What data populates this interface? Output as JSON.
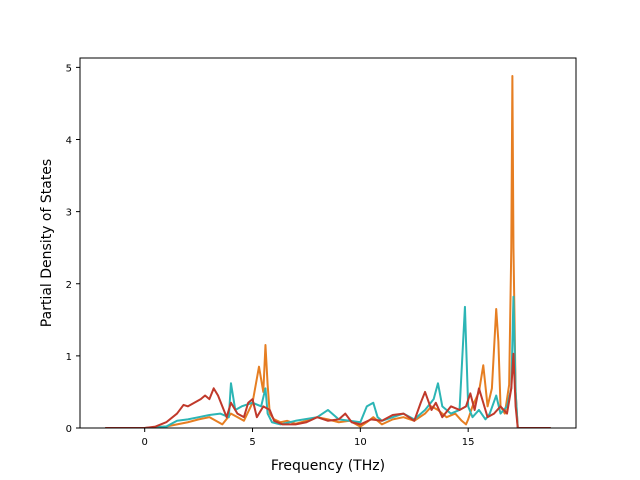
{
  "chart_data": {
    "type": "line",
    "title": "",
    "xlabel": "Frequency (THz)",
    "ylabel": "Partial Density of States",
    "xlim": [
      -3.0,
      20.0
    ],
    "ylim": [
      0,
      5.13
    ],
    "x_ticks": [
      0,
      5,
      10,
      15
    ],
    "x_tick_labels": [
      "0",
      "5",
      "10",
      "15"
    ],
    "y_ticks": [
      0,
      1,
      2,
      3,
      4,
      5
    ],
    "y_tick_labels": [
      "0",
      "1",
      "2",
      "3",
      "4",
      "5"
    ],
    "grid": false,
    "legend": false,
    "series": [
      {
        "color": "#e67e22",
        "x": [
          -1.8,
          0.0,
          1.0,
          1.5,
          2.0,
          2.5,
          3.0,
          3.3,
          3.6,
          4.0,
          4.3,
          4.6,
          5.0,
          5.3,
          5.5,
          5.6,
          5.7,
          5.8,
          6.0,
          6.3,
          6.6,
          7.0,
          7.5,
          8.0,
          8.5,
          9.0,
          9.5,
          10.0,
          10.3,
          10.6,
          11.0,
          11.5,
          12.0,
          12.5,
          13.0,
          13.3,
          13.6,
          14.0,
          14.4,
          14.7,
          14.9,
          15.0,
          15.2,
          15.5,
          15.7,
          15.9,
          16.1,
          16.3,
          16.4,
          16.5,
          16.7,
          16.9,
          17.0,
          17.05,
          17.1,
          17.2,
          17.3,
          17.5,
          18.0,
          18.8
        ],
        "y": [
          0.0,
          0.0,
          0.02,
          0.05,
          0.08,
          0.12,
          0.15,
          0.1,
          0.05,
          0.2,
          0.15,
          0.1,
          0.35,
          0.85,
          0.5,
          1.15,
          0.6,
          0.2,
          0.12,
          0.08,
          0.1,
          0.06,
          0.1,
          0.15,
          0.12,
          0.08,
          0.1,
          0.02,
          0.08,
          0.15,
          0.05,
          0.12,
          0.15,
          0.1,
          0.2,
          0.3,
          0.25,
          0.15,
          0.2,
          0.1,
          0.05,
          0.12,
          0.3,
          0.5,
          0.87,
          0.3,
          0.55,
          1.65,
          1.2,
          0.3,
          0.2,
          0.6,
          2.5,
          4.88,
          2.5,
          0.5,
          0.0,
          0.0,
          0.0,
          0.0
        ]
      },
      {
        "color": "#2cb5b5",
        "x": [
          -1.8,
          0.0,
          1.0,
          1.5,
          2.0,
          2.5,
          3.0,
          3.5,
          3.9,
          4.0,
          4.2,
          4.5,
          5.0,
          5.4,
          5.6,
          5.7,
          5.9,
          6.3,
          7.0,
          8.0,
          8.5,
          9.0,
          9.5,
          10.0,
          10.3,
          10.6,
          10.8,
          11.0,
          11.5,
          12.0,
          12.5,
          13.0,
          13.4,
          13.6,
          13.8,
          14.2,
          14.6,
          14.85,
          14.9,
          15.0,
          15.2,
          15.5,
          15.8,
          16.0,
          16.3,
          16.5,
          16.8,
          17.0,
          17.1,
          17.2,
          17.3,
          17.5,
          18.0,
          18.8
        ],
        "y": [
          0.0,
          0.0,
          0.02,
          0.1,
          0.12,
          0.15,
          0.18,
          0.2,
          0.15,
          0.62,
          0.25,
          0.3,
          0.35,
          0.3,
          0.55,
          0.2,
          0.08,
          0.05,
          0.1,
          0.15,
          0.25,
          0.12,
          0.1,
          0.08,
          0.3,
          0.35,
          0.15,
          0.1,
          0.15,
          0.2,
          0.12,
          0.25,
          0.4,
          0.62,
          0.3,
          0.2,
          0.25,
          1.68,
          1.2,
          0.3,
          0.15,
          0.25,
          0.12,
          0.2,
          0.45,
          0.2,
          0.3,
          0.55,
          1.82,
          0.5,
          0.0,
          0.0,
          0.0,
          0.0
        ]
      },
      {
        "color": "#c0392b",
        "x": [
          -1.8,
          0.0,
          0.5,
          1.0,
          1.5,
          1.8,
          2.0,
          2.3,
          2.6,
          2.8,
          3.0,
          3.2,
          3.4,
          3.6,
          3.8,
          4.0,
          4.3,
          4.6,
          4.8,
          5.0,
          5.2,
          5.5,
          5.8,
          6.0,
          6.4,
          7.0,
          7.5,
          8.0,
          8.5,
          9.0,
          9.3,
          9.6,
          10.0,
          10.5,
          11.0,
          11.5,
          12.0,
          12.5,
          12.8,
          13.0,
          13.3,
          13.5,
          13.8,
          14.2,
          14.6,
          14.9,
          15.1,
          15.3,
          15.5,
          15.7,
          15.9,
          16.2,
          16.5,
          16.8,
          17.0,
          17.1,
          17.2,
          17.3,
          17.5,
          18.0,
          18.8
        ],
        "y": [
          0.0,
          0.0,
          0.02,
          0.08,
          0.2,
          0.32,
          0.3,
          0.35,
          0.4,
          0.45,
          0.4,
          0.55,
          0.45,
          0.3,
          0.15,
          0.35,
          0.2,
          0.15,
          0.35,
          0.4,
          0.15,
          0.3,
          0.25,
          0.1,
          0.05,
          0.05,
          0.08,
          0.15,
          0.1,
          0.12,
          0.2,
          0.08,
          0.05,
          0.12,
          0.1,
          0.18,
          0.2,
          0.1,
          0.35,
          0.5,
          0.25,
          0.35,
          0.15,
          0.3,
          0.25,
          0.3,
          0.48,
          0.25,
          0.55,
          0.35,
          0.15,
          0.2,
          0.3,
          0.2,
          0.55,
          1.03,
          0.3,
          0.0,
          0.0,
          0.0,
          0.0
        ]
      }
    ]
  }
}
